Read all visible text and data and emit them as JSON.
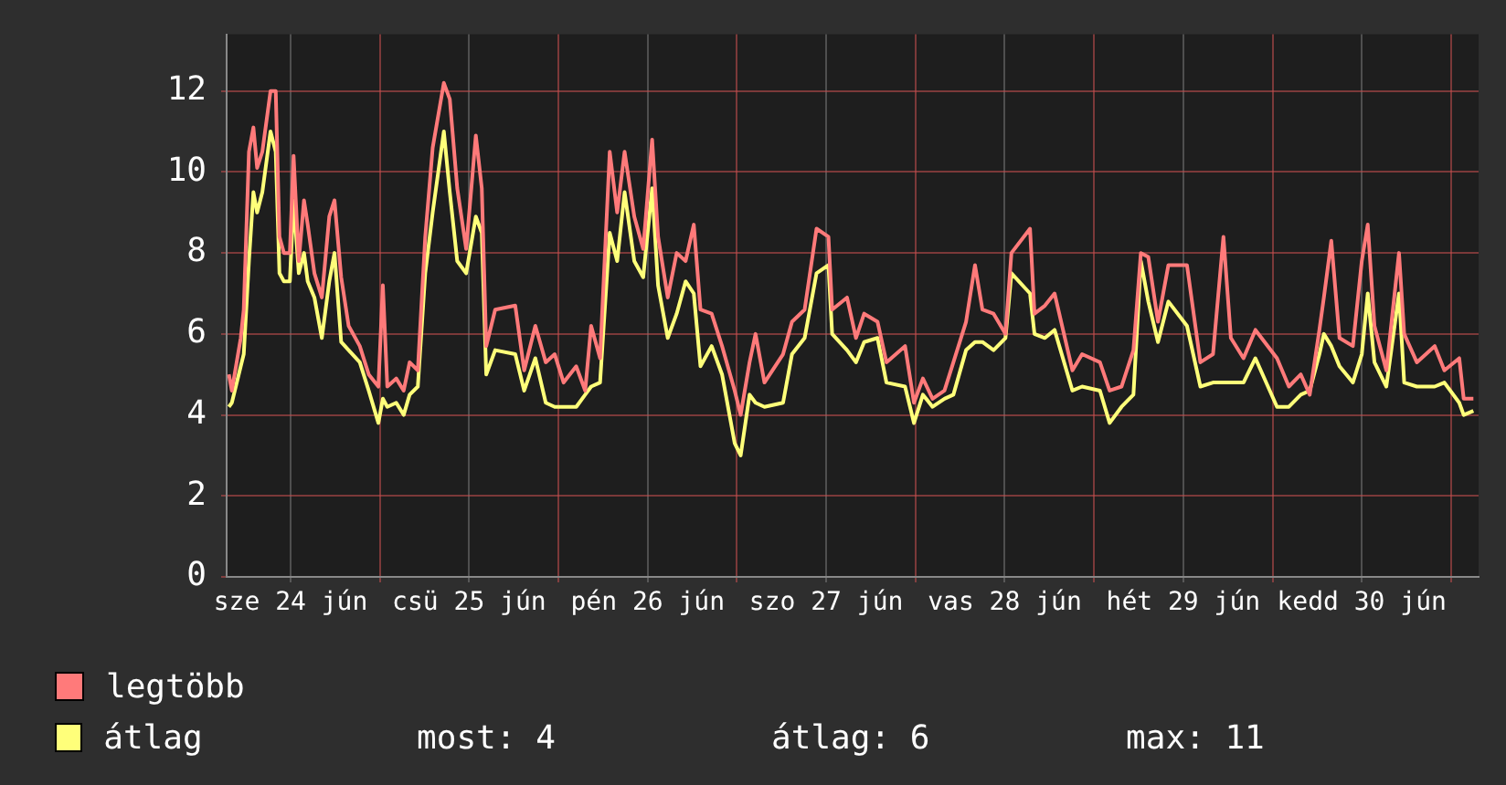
{
  "chart_data": {
    "type": "line",
    "x": [
      "--06-24T03:42",
      "--06-24T04:06",
      "--06-24T05:18",
      "--06-24T05:42",
      "--06-24T06:24",
      "--06-24T07:00",
      "--06-24T07:30",
      "--06-24T08:12",
      "--06-24T09:18",
      "--06-24T10:00",
      "--06-24T10:30",
      "--06-24T11:06",
      "--06-24T11:54",
      "--06-24T12:24",
      "--06-24T13:06",
      "--06-24T13:48",
      "--06-24T14:18",
      "--06-24T15:12",
      "--06-24T16:12",
      "--06-24T17:12",
      "--06-24T17:54",
      "--06-24T18:48",
      "--06-24T19:48",
      "--06-24T21:18",
      "--06-24T22:30",
      "--06-24T23:48",
      "--06-25T00:24",
      "--06-25T01:00",
      "--06-25T02:12",
      "--06-25T03:12",
      "--06-25T04:00",
      "--06-25T05:06",
      "--06-25T06:06",
      "--06-25T07:06",
      "--06-25T08:36",
      "--06-25T09:24",
      "--06-25T10:24",
      "--06-25T11:36",
      "--06-25T12:54",
      "--06-25T13:42",
      "--06-25T14:18",
      "--06-25T15:30",
      "--06-25T18:12",
      "--06-25T19:24",
      "--06-25T20:54",
      "--06-25T22:18",
      "--06-25T23:30",
      "--06-26T00:42",
      "--06-26T02:24",
      "--06-26T03:36",
      "--06-26T04:24",
      "--06-26T05:36",
      "--06-26T06:54",
      "--06-26T07:54",
      "--06-26T08:54",
      "--06-26T10:12",
      "--06-26T11:24",
      "--06-26T12:36",
      "--06-26T13:24",
      "--06-26T14:42",
      "--06-26T15:54",
      "--06-26T17:06",
      "--06-26T18:12",
      "--06-26T19:06",
      "--06-26T20:36",
      "--06-26T22:00",
      "--06-26T23:42",
      "--06-27T00:30",
      "--06-27T01:42",
      "--06-27T02:30",
      "--06-27T03:42",
      "--06-27T06:12",
      "--06-27T07:24",
      "--06-27T09:06",
      "--06-27T10:42",
      "--06-27T12:18",
      "--06-27T12:48",
      "--06-27T14:48",
      "--06-27T16:00",
      "--06-27T17:06",
      "--06-27T18:54",
      "--06-27T20:06",
      "--06-27T22:36",
      "--06-27T23:48",
      "--06-28T01:00",
      "--06-28T02:18",
      "--06-28T03:54",
      "--06-28T05:06",
      "--06-28T06:48",
      "--06-28T08:00",
      "--06-28T09:00",
      "--06-28T10:30",
      "--06-28T12:06",
      "--06-28T12:54",
      "--06-28T15:24",
      "--06-28T16:00",
      "--06-28T17:24",
      "--06-28T18:42",
      "--06-28T21:06",
      "--06-28T22:24",
      "--06-29T00:48",
      "--06-29T02:06",
      "--06-29T03:42",
      "--06-29T05:18",
      "--06-29T06:18",
      "--06-29T07:18",
      "--06-29T08:36",
      "--06-29T10:00",
      "--06-29T12:30",
      "--06-29T14:18",
      "--06-29T16:00",
      "--06-29T17:24",
      "--06-29T18:24",
      "--06-29T20:06",
      "--06-29T21:42",
      "--06-30T00:36",
      "--06-30T02:12",
      "--06-30T03:48",
      "--06-30T05:00",
      "--06-30T06:18",
      "--06-30T06:54",
      "--06-30T07:54",
      "--06-30T09:00",
      "--06-30T10:48",
      "--06-30T12:00",
      "--06-30T12:48",
      "--06-30T13:42",
      "--06-30T15:18",
      "--06-30T17:00",
      "--06-30T17:42",
      "--06-30T19:24",
      "--06-30T21:48",
      "--06-30T23:06",
      "--07-01T01:06",
      "--07-01T01:42",
      "--07-01T03:00"
    ],
    "series": [
      {
        "name": "legtöbb",
        "color": "#ff7a7a",
        "values": [
          5.0,
          4.6,
          5.9,
          6.6,
          10.5,
          11.1,
          10.1,
          10.5,
          12.0,
          12.0,
          8.4,
          8.0,
          8.0,
          10.4,
          7.8,
          9.3,
          8.7,
          7.5,
          6.9,
          8.9,
          9.3,
          7.4,
          6.2,
          5.7,
          5.0,
          4.7,
          7.2,
          4.7,
          4.9,
          4.6,
          5.3,
          5.1,
          8.4,
          10.6,
          12.2,
          11.8,
          9.6,
          8.1,
          10.9,
          9.6,
          5.7,
          6.6,
          6.7,
          5.1,
          6.2,
          5.3,
          5.5,
          4.8,
          5.2,
          4.6,
          6.2,
          5.4,
          10.5,
          9.0,
          10.5,
          8.9,
          8.1,
          10.8,
          8.4,
          6.9,
          8.0,
          7.8,
          8.7,
          6.6,
          6.5,
          5.7,
          4.6,
          4.0,
          5.3,
          6.0,
          4.8,
          5.5,
          6.3,
          6.6,
          8.6,
          8.4,
          6.6,
          6.9,
          5.9,
          6.5,
          6.3,
          5.3,
          5.7,
          4.3,
          4.9,
          4.4,
          4.6,
          5.3,
          6.3,
          7.7,
          6.6,
          6.5,
          6.0,
          8.0,
          8.6,
          6.5,
          6.7,
          7.0,
          5.1,
          5.5,
          5.3,
          4.6,
          4.7,
          5.6,
          8.0,
          7.9,
          6.3,
          7.7,
          7.7,
          5.3,
          5.5,
          8.4,
          5.9,
          5.4,
          6.1,
          5.4,
          4.7,
          5.0,
          4.5,
          6.1,
          6.9,
          8.3,
          5.9,
          5.7,
          7.8,
          8.7,
          6.2,
          5.1,
          8.0,
          6.0,
          5.3,
          5.7,
          5.1,
          5.4,
          4.4,
          4.4
        ]
      },
      {
        "name": "átlag",
        "color": "#ffff7a",
        "values": [
          4.2,
          4.3,
          5.2,
          5.5,
          7.8,
          9.5,
          9.0,
          9.5,
          11.0,
          10.5,
          7.5,
          7.3,
          7.3,
          9.3,
          7.5,
          8.0,
          7.3,
          6.9,
          5.9,
          7.3,
          8.0,
          5.8,
          5.6,
          5.3,
          4.6,
          3.8,
          4.4,
          4.2,
          4.3,
          4.0,
          4.5,
          4.7,
          7.5,
          9.0,
          11.0,
          9.5,
          7.8,
          7.5,
          8.9,
          8.5,
          5.0,
          5.6,
          5.5,
          4.6,
          5.4,
          4.3,
          4.2,
          4.2,
          4.2,
          4.5,
          4.7,
          4.8,
          8.5,
          7.8,
          9.5,
          7.8,
          7.4,
          9.6,
          7.2,
          5.9,
          6.5,
          7.3,
          7.0,
          5.2,
          5.7,
          5.0,
          3.3,
          3.0,
          4.5,
          4.3,
          4.2,
          4.3,
          5.5,
          5.9,
          7.5,
          7.7,
          6.0,
          5.6,
          5.3,
          5.8,
          5.9,
          4.8,
          4.7,
          3.8,
          4.5,
          4.2,
          4.4,
          4.5,
          5.6,
          5.8,
          5.8,
          5.6,
          5.9,
          7.5,
          7.0,
          6.0,
          5.9,
          6.1,
          4.6,
          4.7,
          4.6,
          3.8,
          4.2,
          4.5,
          7.8,
          6.8,
          5.8,
          6.8,
          6.2,
          4.7,
          4.8,
          4.8,
          4.8,
          4.8,
          5.4,
          4.2,
          4.2,
          4.5,
          4.6,
          5.5,
          6.0,
          5.7,
          5.2,
          4.8,
          5.5,
          7.0,
          5.3,
          4.7,
          7.0,
          4.8,
          4.7,
          4.7,
          4.8,
          4.3,
          4.0,
          4.1
        ]
      }
    ],
    "xlim": [
      "--06-24T03:24",
      "--07-01T03:42"
    ],
    "xticks": [
      {
        "value": "--06-24T12:00",
        "label": "sze 24 jún"
      },
      {
        "value": "--06-25T00:00",
        "label": null
      },
      {
        "value": "--06-25T12:00",
        "label": "csü 25 jún"
      },
      {
        "value": "--06-26T00:00",
        "label": null
      },
      {
        "value": "--06-26T12:00",
        "label": "pén 26 jún"
      },
      {
        "value": "--06-27T00:00",
        "label": null
      },
      {
        "value": "--06-27T12:00",
        "label": "szo 27 jún"
      },
      {
        "value": "--06-28T00:00",
        "label": null
      },
      {
        "value": "--06-28T12:00",
        "label": "vas 28 jún"
      },
      {
        "value": "--06-29T00:00",
        "label": null
      },
      {
        "value": "--06-29T12:00",
        "label": "hét 29 jún"
      },
      {
        "value": "--06-30T00:00",
        "label": null
      },
      {
        "value": "--06-30T12:00",
        "label": "kedd 30 jún"
      },
      {
        "value": "--07-01T00:00",
        "label": null
      }
    ],
    "ylim": [
      0,
      13.4
    ],
    "yticks": [
      0,
      2,
      4,
      6,
      8,
      10,
      12
    ],
    "grid": true,
    "legend": "bottom",
    "annotations": [
      "most: 4",
      "átlag: 6",
      "max: 11"
    ]
  }
}
